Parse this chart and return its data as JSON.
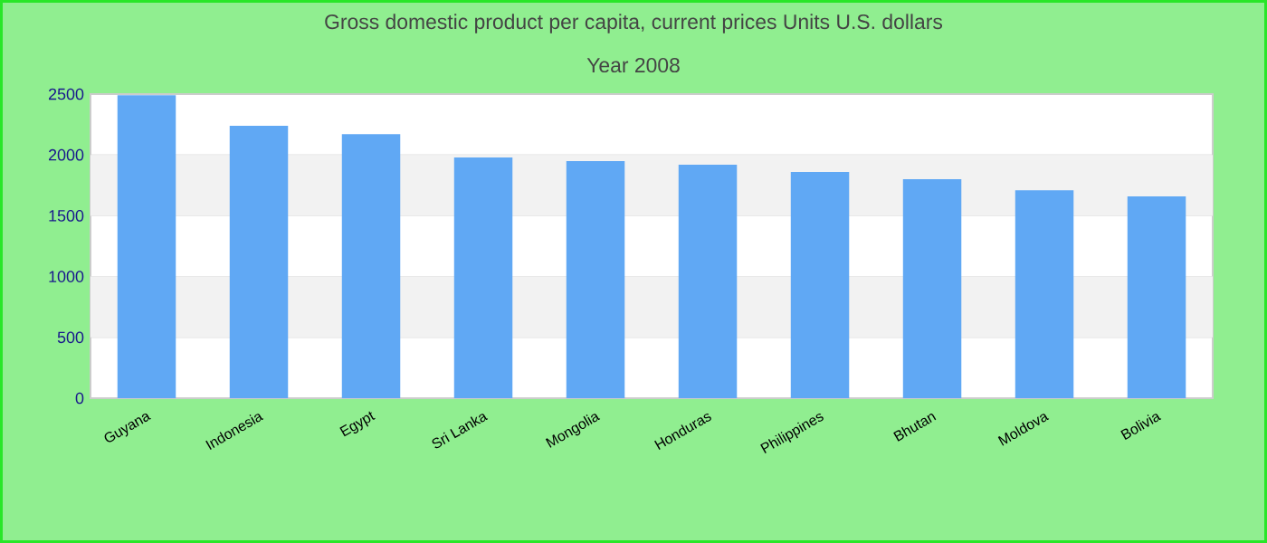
{
  "chart_data": {
    "type": "bar",
    "title": "Gross domestic product per capita, current prices Units U.S. dollars",
    "subtitle": "Year 2008",
    "categories": [
      "Guyana",
      "Indonesia",
      "Egypt",
      "Sri Lanka",
      "Mongolia",
      "Honduras",
      "Philippines",
      "Bhutan",
      "Moldova",
      "Bolivia"
    ],
    "values": [
      2490,
      2240,
      2170,
      1980,
      1950,
      1920,
      1860,
      1800,
      1710,
      1660
    ],
    "color": "#60a8f4",
    "ylim": [
      0,
      2500
    ],
    "yticks": [
      0,
      500,
      1000,
      1500,
      2000,
      2500
    ],
    "grid": "y"
  }
}
